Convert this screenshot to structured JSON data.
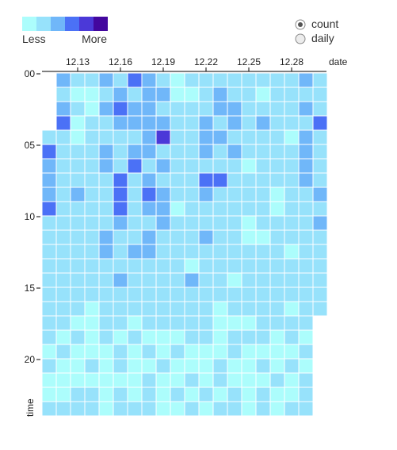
{
  "legend": {
    "less_label": "Less",
    "more_label": "More",
    "colors": [
      "#acfdfc",
      "#97e2fb",
      "#70b7f9",
      "#4b71f6",
      "#4b39d8",
      "#43079e"
    ]
  },
  "controls": {
    "options": [
      {
        "label": "count",
        "selected": true
      },
      {
        "label": "daily",
        "selected": false
      }
    ]
  },
  "chart_data": {
    "type": "heatmap",
    "xlabel": "date",
    "ylabel": "time",
    "x_tick_labels": [
      "12.13",
      "12.16",
      "12.19",
      "12.22",
      "12.25",
      "12.28"
    ],
    "y_tick_labels": [
      "00",
      "05",
      "10",
      "15",
      "20"
    ],
    "x": [
      "12.11",
      "12.12",
      "12.13",
      "12.14",
      "12.15",
      "12.16",
      "12.17",
      "12.18",
      "12.19",
      "12.20",
      "12.21",
      "12.22",
      "12.23",
      "12.24",
      "12.25",
      "12.26",
      "12.27",
      "12.28",
      "12.29",
      "12.30"
    ],
    "y": [
      "00",
      "01",
      "02",
      "03",
      "04",
      "05",
      "06",
      "07",
      "08",
      "09",
      "10",
      "11",
      "12",
      "13",
      "14",
      "15",
      "16",
      "17",
      "18",
      "19",
      "20",
      "21",
      "22",
      "23"
    ],
    "value_scale": "level 0 (Less) to 5 (More); null = no data",
    "values": [
      [
        null,
        2,
        1,
        1,
        2,
        1,
        3,
        2,
        1,
        0,
        1,
        1,
        1,
        1,
        1,
        1,
        1,
        1,
        2,
        1
      ],
      [
        null,
        1,
        0,
        0,
        1,
        2,
        1,
        2,
        2,
        0,
        0,
        1,
        2,
        1,
        1,
        0,
        1,
        1,
        1,
        1
      ],
      [
        null,
        2,
        1,
        0,
        2,
        3,
        2,
        2,
        1,
        1,
        1,
        1,
        2,
        2,
        1,
        1,
        1,
        1,
        2,
        1
      ],
      [
        null,
        3,
        0,
        1,
        1,
        2,
        2,
        2,
        2,
        1,
        1,
        2,
        1,
        2,
        1,
        2,
        1,
        1,
        1,
        3
      ],
      [
        1,
        1,
        0,
        1,
        1,
        1,
        1,
        2,
        4,
        1,
        1,
        2,
        2,
        1,
        1,
        1,
        1,
        0,
        2,
        1
      ],
      [
        3,
        1,
        1,
        1,
        2,
        1,
        2,
        2,
        1,
        1,
        1,
        2,
        1,
        2,
        1,
        1,
        1,
        1,
        2,
        1
      ],
      [
        2,
        1,
        1,
        1,
        2,
        1,
        3,
        1,
        2,
        1,
        1,
        1,
        1,
        1,
        0,
        1,
        1,
        1,
        2,
        1
      ],
      [
        2,
        1,
        1,
        1,
        1,
        3,
        1,
        2,
        1,
        1,
        1,
        3,
        3,
        1,
        1,
        1,
        1,
        1,
        2,
        1
      ],
      [
        2,
        1,
        2,
        1,
        1,
        3,
        1,
        3,
        2,
        1,
        1,
        2,
        1,
        1,
        1,
        1,
        0,
        1,
        1,
        2
      ],
      [
        3,
        1,
        1,
        1,
        1,
        3,
        1,
        2,
        2,
        0,
        1,
        1,
        1,
        1,
        1,
        1,
        0,
        1,
        1,
        1
      ],
      [
        1,
        1,
        1,
        1,
        1,
        2,
        1,
        1,
        2,
        1,
        1,
        1,
        1,
        1,
        0,
        1,
        1,
        1,
        1,
        2
      ],
      [
        1,
        1,
        1,
        1,
        2,
        1,
        1,
        2,
        1,
        1,
        1,
        2,
        1,
        1,
        0,
        0,
        1,
        1,
        1,
        1
      ],
      [
        1,
        1,
        1,
        1,
        2,
        1,
        2,
        2,
        1,
        1,
        1,
        1,
        1,
        1,
        1,
        1,
        1,
        0,
        1,
        1
      ],
      [
        1,
        1,
        1,
        1,
        1,
        1,
        1,
        1,
        1,
        1,
        0,
        1,
        1,
        1,
        1,
        1,
        1,
        1,
        1,
        1
      ],
      [
        1,
        1,
        1,
        1,
        1,
        2,
        1,
        1,
        1,
        1,
        2,
        1,
        1,
        0,
        1,
        1,
        1,
        1,
        1,
        1
      ],
      [
        1,
        1,
        1,
        1,
        1,
        1,
        1,
        1,
        1,
        1,
        1,
        1,
        1,
        1,
        1,
        1,
        1,
        1,
        1,
        1
      ],
      [
        1,
        1,
        1,
        0,
        1,
        1,
        1,
        1,
        1,
        1,
        1,
        1,
        0,
        1,
        1,
        1,
        1,
        0,
        1,
        1
      ],
      [
        1,
        1,
        0,
        0,
        1,
        1,
        0,
        1,
        1,
        1,
        1,
        1,
        0,
        0,
        0,
        1,
        1,
        1,
        1,
        null
      ],
      [
        1,
        0,
        1,
        0,
        1,
        0,
        1,
        0,
        0,
        0,
        1,
        1,
        0,
        1,
        1,
        1,
        0,
        1,
        0,
        null
      ],
      [
        0,
        1,
        0,
        0,
        0,
        1,
        0,
        1,
        0,
        1,
        0,
        0,
        0,
        1,
        0,
        0,
        0,
        0,
        1,
        null
      ],
      [
        1,
        0,
        0,
        1,
        0,
        1,
        0,
        0,
        1,
        0,
        0,
        0,
        1,
        0,
        0,
        1,
        0,
        1,
        0,
        null
      ],
      [
        0,
        0,
        0,
        0,
        0,
        0,
        0,
        1,
        0,
        0,
        1,
        0,
        1,
        0,
        0,
        0,
        1,
        0,
        1,
        null
      ],
      [
        0,
        0,
        1,
        1,
        0,
        1,
        0,
        1,
        0,
        1,
        0,
        1,
        0,
        1,
        0,
        1,
        0,
        0,
        1,
        null
      ],
      [
        1,
        1,
        1,
        1,
        0,
        1,
        1,
        1,
        0,
        0,
        1,
        0,
        1,
        1,
        0,
        1,
        0,
        1,
        1,
        null
      ]
    ],
    "grid": false
  }
}
